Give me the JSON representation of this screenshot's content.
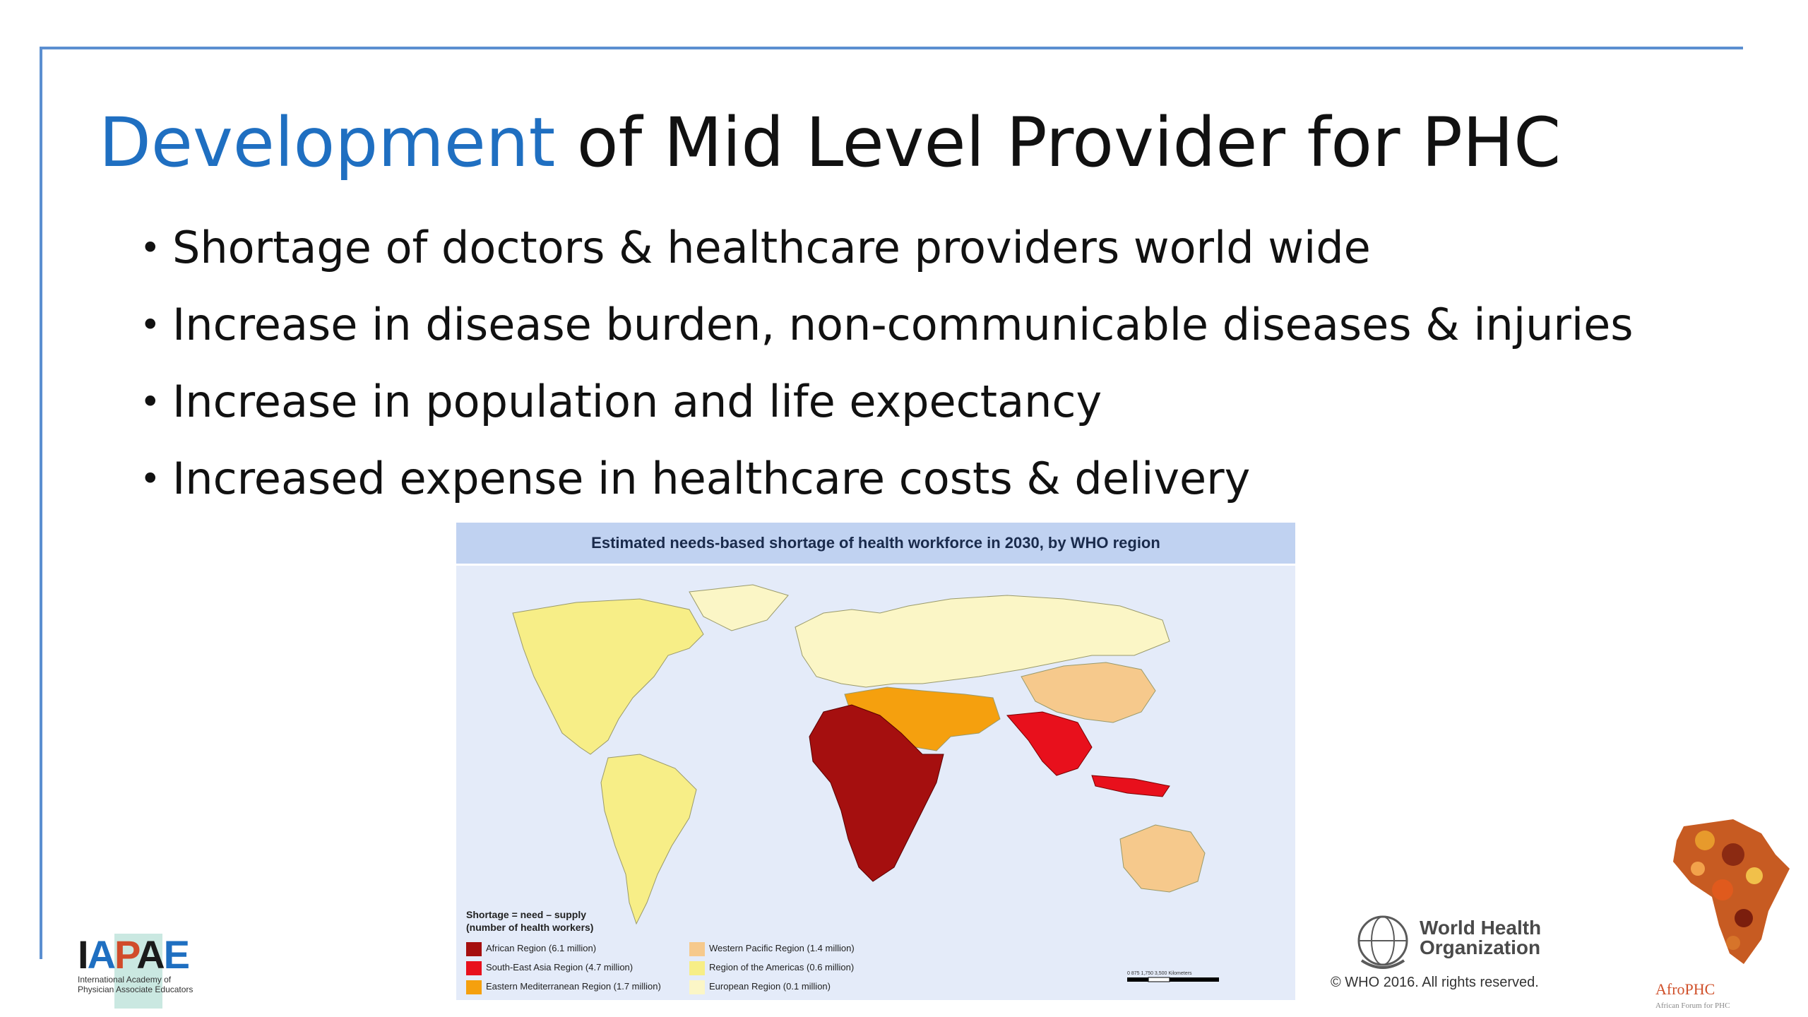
{
  "slide": {
    "title_accent": "Development",
    "title_rest": " of Mid Level Provider for PHC",
    "bullets": [
      "Shortage of doctors & healthcare providers world wide",
      "Increase in disease burden, non-communicable diseases & injuries",
      "Increase in population and life expectancy",
      "Increased expense in healthcare costs & delivery"
    ],
    "bullet_symbol": "•"
  },
  "map": {
    "title": "Estimated needs-based shortage of health workforce in 2030, by WHO region",
    "legend_title_line1": "Shortage = need – supply",
    "legend_title_line2": "(number of health workers)",
    "legend_items": [
      {
        "label": "African Region (6.1 million)",
        "color": "#a50f0f"
      },
      {
        "label": "South-East Asia Region (4.7 million)",
        "color": "#e8101c"
      },
      {
        "label": "Eastern Mediterranean Region (1.7 million)",
        "color": "#f5a00e"
      },
      {
        "label": "Western Pacific Region (1.4 million)",
        "color": "#f6c98c"
      },
      {
        "label": "Region of the Americas (0.6 million)",
        "color": "#f7ee87"
      },
      {
        "label": "European Region (0.1 million)",
        "color": "#fbf6c6"
      }
    ],
    "scale_text": "0   875  1,750        3,500 Kilometers",
    "ocean_color": "#e4ebf9"
  },
  "who": {
    "line1": "World Health",
    "line2": "Organization",
    "copyright": "© WHO 2016. All rights reserved."
  },
  "iapae": {
    "letters": [
      "I",
      "A",
      "P",
      "A",
      "E"
    ],
    "letter_colors": [
      "#1a1a1a",
      "#1f6fc1",
      "#d14b2a",
      "#1a1a1a",
      "#1f6fc1"
    ],
    "sub_line1": "International Academy of",
    "sub_line2": "Physician Associate Educators"
  },
  "afro": {
    "name": "AfroPHC",
    "subtitle": "African Forum for PHC"
  },
  "colors": {
    "accent": "#1f6fc1",
    "frame": "#5b8fd0"
  }
}
